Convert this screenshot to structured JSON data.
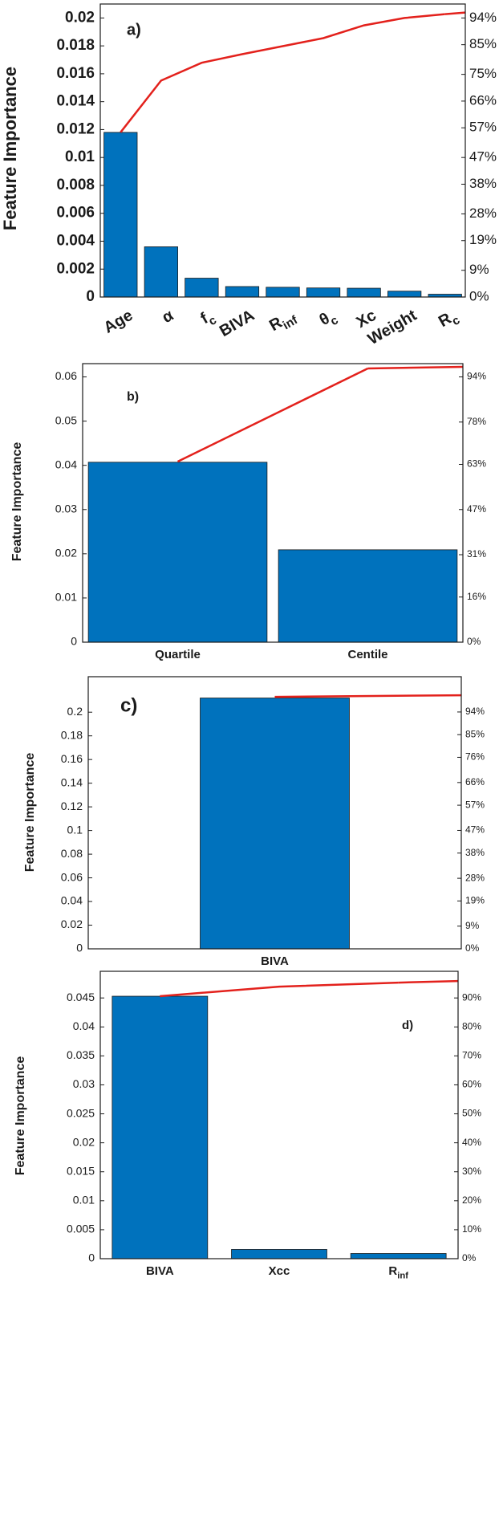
{
  "chart_data": [
    {
      "type": "bar",
      "panel_label": "a)",
      "ylabel": "Feature Importance",
      "categories": [
        "Age",
        "α",
        {
          "text": "f",
          "sub": "c"
        },
        "BIVA",
        {
          "text": "R",
          "sub": "inf"
        },
        {
          "text": "θ",
          "sub": "c"
        },
        "Xc",
        "Weight",
        {
          "text": "R",
          "sub": "c"
        }
      ],
      "values": [
        0.0118,
        0.0036,
        0.00135,
        0.00075,
        0.0007,
        0.00065,
        0.00063,
        0.00042,
        0.0002
      ],
      "color": "#0072bd",
      "cumulative_values": [
        55.5,
        72.9,
        78.9,
        81.8,
        84.5,
        87.2,
        91.5,
        94.0,
        95.3
      ],
      "cumulative_color": "#e3211c",
      "ylim": [
        0,
        0.021
      ],
      "yticks": [
        0,
        0.002,
        0.004,
        0.006,
        0.008,
        0.01,
        0.012,
        0.014,
        0.016,
        0.018,
        0.02
      ],
      "y2lim": [
        0,
        98.7
      ],
      "y2ticks": [
        {
          "value": 0,
          "label": "0%"
        },
        {
          "value": 9,
          "label": "9%"
        },
        {
          "value": 19,
          "label": "19%"
        },
        {
          "value": 28,
          "label": "28%"
        },
        {
          "value": 38,
          "label": "38%"
        },
        {
          "value": 47,
          "label": "47%"
        },
        {
          "value": 57,
          "label": "57%"
        },
        {
          "value": 66,
          "label": "66%"
        },
        {
          "value": 75,
          "label": "75%"
        },
        {
          "value": 85,
          "label": "85%"
        },
        {
          "value": 94,
          "label": "94%"
        }
      ]
    },
    {
      "type": "bar",
      "panel_label": "b)",
      "ylabel": "Feature Importance",
      "categories": [
        "Quartile",
        "Centile"
      ],
      "values": [
        0.0407,
        0.0209
      ],
      "color": "#0072bd",
      "cumulative_values": [
        64,
        97
      ],
      "cumulative_color": "#e3211c",
      "ylim": [
        0,
        0.063
      ],
      "yticks": [
        0,
        0.01,
        0.02,
        0.03,
        0.04,
        0.05,
        0.06
      ],
      "y2lim": [
        0,
        98.7
      ],
      "y2ticks": [
        {
          "value": 0,
          "label": "0%"
        },
        {
          "value": 16,
          "label": "16%"
        },
        {
          "value": 31,
          "label": "31%"
        },
        {
          "value": 47,
          "label": "47%"
        },
        {
          "value": 63,
          "label": "63%"
        },
        {
          "value": 78,
          "label": "78%"
        },
        {
          "value": 94,
          "label": "94%"
        }
      ]
    },
    {
      "type": "bar",
      "panel_label": "c)",
      "ylabel": "Feature Importance",
      "categories": [
        "BIVA"
      ],
      "values": [
        0.212
      ],
      "color": "#0072bd",
      "cumulative_values": [
        100
      ],
      "cumulative_color": "#e3211c",
      "ylim": [
        0,
        0.23
      ],
      "yticks": [
        0,
        0.02,
        0.04,
        0.06,
        0.08,
        0.1,
        0.12,
        0.14,
        0.16,
        0.18,
        0.2
      ],
      "y2lim": [
        0,
        108
      ],
      "y2ticks": [
        {
          "value": 0,
          "label": "0%"
        },
        {
          "value": 9,
          "label": "9%"
        },
        {
          "value": 19,
          "label": "19%"
        },
        {
          "value": 28,
          "label": "28%"
        },
        {
          "value": 38,
          "label": "38%"
        },
        {
          "value": 47,
          "label": "47%"
        },
        {
          "value": 57,
          "label": "57%"
        },
        {
          "value": 66,
          "label": "66%"
        },
        {
          "value": 76,
          "label": "76%"
        },
        {
          "value": 85,
          "label": "85%"
        },
        {
          "value": 94,
          "label": "94%"
        }
      ]
    },
    {
      "type": "bar",
      "panel_label": "d)",
      "ylabel": "Feature Importance",
      "categories": [
        "BIVA",
        "Xcc",
        {
          "text": "R",
          "sub": "inf"
        }
      ],
      "values": [
        0.0453,
        0.0016,
        0.0009
      ],
      "color": "#0072bd",
      "cumulative_values": [
        90.6,
        93.9,
        95.3
      ],
      "cumulative_color": "#e3211c",
      "ylim": [
        0,
        0.0496
      ],
      "yticks": [
        0,
        0.005,
        0.01,
        0.015,
        0.02,
        0.025,
        0.03,
        0.035,
        0.04,
        0.045
      ],
      "y2lim": [
        0,
        99.2
      ],
      "y2ticks": [
        {
          "value": 0,
          "label": "0%"
        },
        {
          "value": 10,
          "label": "10%"
        },
        {
          "value": 20,
          "label": "20%"
        },
        {
          "value": 30,
          "label": "30%"
        },
        {
          "value": 40,
          "label": "40%"
        },
        {
          "value": 50,
          "label": "50%"
        },
        {
          "value": 60,
          "label": "60%"
        },
        {
          "value": 70,
          "label": "70%"
        },
        {
          "value": 80,
          "label": "80%"
        },
        {
          "value": 90,
          "label": "90%"
        }
      ]
    }
  ]
}
